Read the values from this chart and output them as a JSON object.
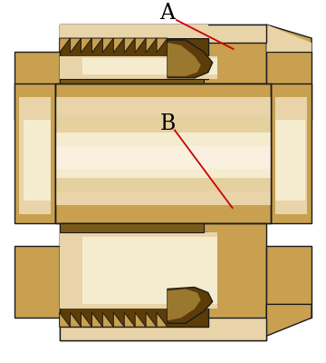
{
  "bg_color": "#ffffff",
  "brass_body": "#C8A050",
  "brass_mid": "#B8903A",
  "brass_light": "#D4B878",
  "brass_highlight": "#E8D4A8",
  "brass_shine": "#F5ECD0",
  "brass_dark": "#7A5A18",
  "brass_very_dark": "#5C3D08",
  "brass_shadow": "#9A7830",
  "outline_color": "#1a1a1a",
  "label_A": "A",
  "label_B": "B",
  "label_color": "#000000",
  "arrow_color": "#cc0000",
  "label_fontsize": 17
}
